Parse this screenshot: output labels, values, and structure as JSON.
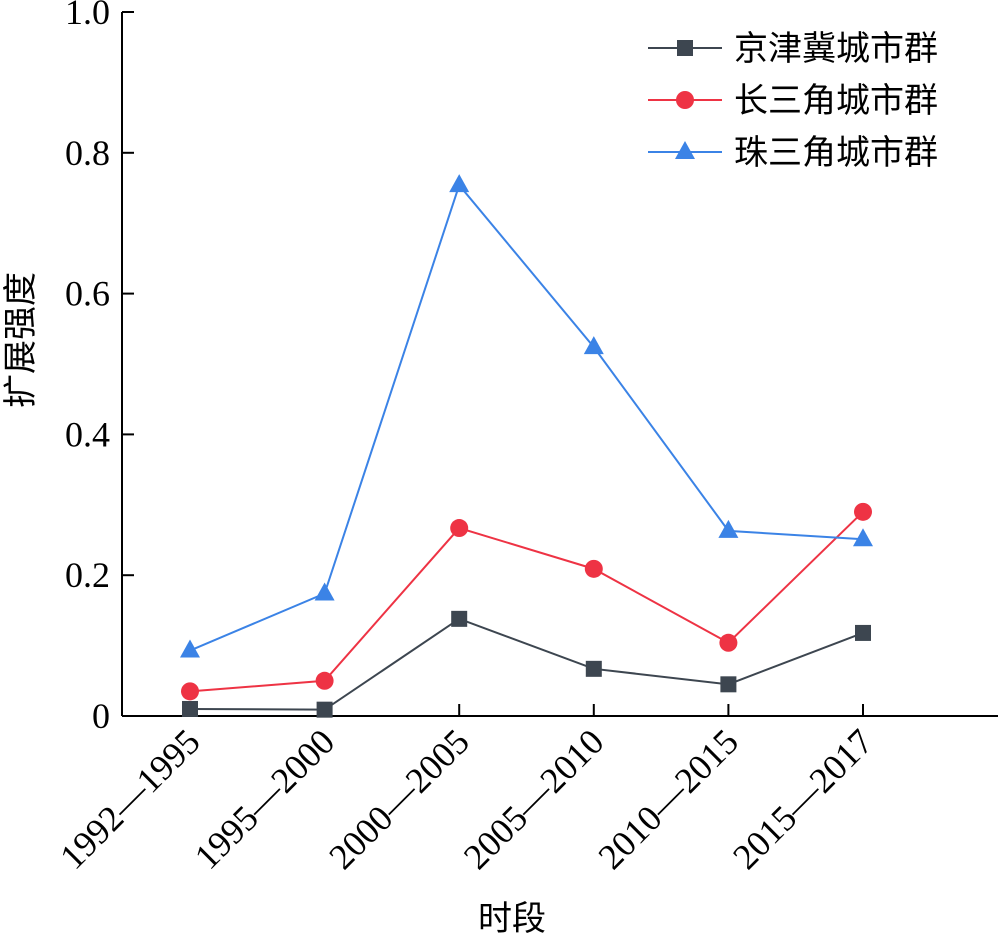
{
  "chart_data": {
    "type": "line",
    "categories": [
      "1992—1995",
      "1995—2000",
      "2000—2005",
      "2005—2010",
      "2010—2015",
      "2015—2017"
    ],
    "xlabel": "时段",
    "ylabel": "扩展强度",
    "ylim": [
      0,
      1.0
    ],
    "yticks": [
      "0",
      "0.2",
      "0.4",
      "0.6",
      "0.8",
      "1.0"
    ],
    "grid": false,
    "legend_position": "top-right",
    "series": [
      {
        "name": "京津冀城市群",
        "color": "#3d4650",
        "marker": "square",
        "values": [
          0.01,
          0.009,
          0.138,
          0.067,
          0.045,
          0.118
        ]
      },
      {
        "name": "长三角城市群",
        "color": "#ee3344",
        "marker": "circle",
        "values": [
          0.035,
          0.05,
          0.267,
          0.209,
          0.104,
          0.29
        ]
      },
      {
        "name": "珠三角城市群",
        "color": "#3b83e6",
        "marker": "triangle",
        "values": [
          0.093,
          0.174,
          0.754,
          0.524,
          0.263,
          0.251
        ]
      }
    ]
  }
}
